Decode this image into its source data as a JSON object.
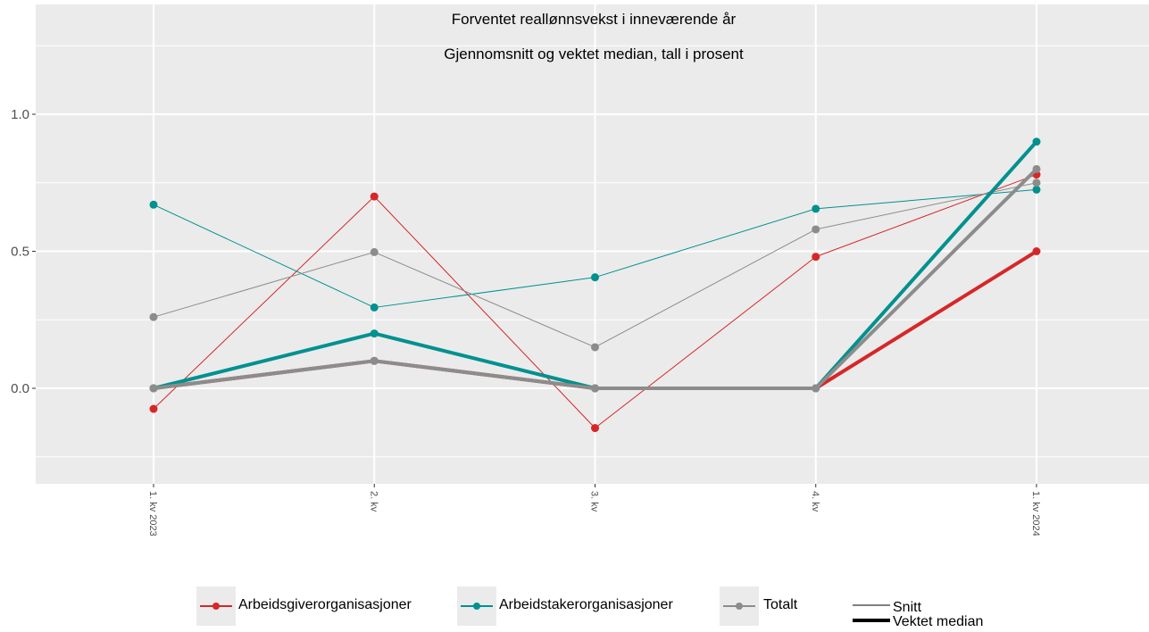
{
  "chart_data": {
    "type": "line",
    "title": "Forventet reallønnsvekst i inneværende år",
    "subtitle": "Gjennomsnitt og vektet median, tall i prosent",
    "categories": [
      "1. kv 2023",
      "2. kv",
      "3. kv",
      "4. kv",
      "1. kv 2024"
    ],
    "y_ticks": [
      "0.0",
      "0.5",
      "1.0"
    ],
    "ylim": [
      -0.35,
      1.4
    ],
    "grid": true,
    "legend_position": "bottom",
    "series": [
      {
        "name": "Arbeidsgiverorganisasjoner",
        "measure": "Snitt",
        "color": "#d62728",
        "values": [
          -0.075,
          0.7,
          -0.145,
          0.48,
          0.78
        ]
      },
      {
        "name": "Arbeidstakerorganisasjoner",
        "measure": "Snitt",
        "color": "#00918f",
        "values": [
          0.67,
          0.295,
          0.405,
          0.655,
          0.725
        ]
      },
      {
        "name": "Totalt",
        "measure": "Snitt",
        "color": "#8c8c8c",
        "values": [
          0.26,
          0.497,
          0.15,
          0.58,
          0.75
        ]
      },
      {
        "name": "Arbeidsgiverorganisasjoner",
        "measure": "Vektet median",
        "color": "#d62728",
        "values": [
          0.0,
          0.1,
          0.0,
          0.0,
          0.5
        ]
      },
      {
        "name": "Arbeidstakerorganisasjoner",
        "measure": "Vektet median",
        "color": "#00918f",
        "values": [
          0.0,
          0.2,
          0.0,
          0.0,
          0.9
        ]
      },
      {
        "name": "Totalt",
        "measure": "Vektet median",
        "color": "#8c8c8c",
        "values": [
          0.0,
          0.1,
          0.0,
          0.0,
          0.8
        ]
      }
    ],
    "legend": {
      "groups": [
        {
          "label": "Arbeidsgiverorganisasjoner",
          "color": "#d62728"
        },
        {
          "label": "Arbeidstakerorganisasjoner",
          "color": "#00918f"
        },
        {
          "label": "Totalt",
          "color": "#8c8c8c"
        }
      ],
      "measures": [
        "Snitt",
        "Vektet median"
      ]
    }
  }
}
